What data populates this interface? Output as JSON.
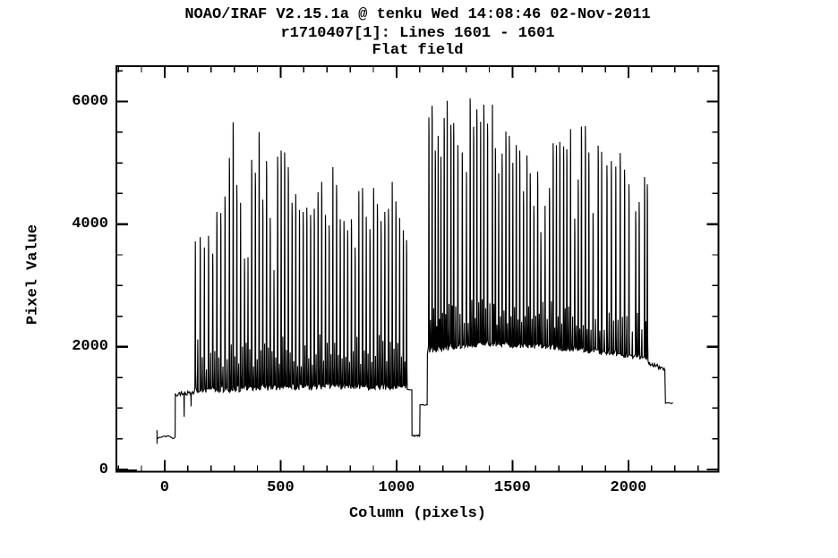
{
  "window": {
    "background": "#ffffff",
    "foreground": "#000000"
  },
  "header": {
    "line1": "NOAO/IRAF V2.15.1a @ tenku Wed 14:08:46 02-Nov-2011",
    "line2": "r1710407[1]: Lines 1601 - 1601",
    "line3": "Flat field"
  },
  "chart_data": {
    "type": "line",
    "title": "NOAO/IRAF V2.15.1a @ tenku Wed 14:08:46 02-Nov-2011",
    "subtitle": "r1710407[1]: Lines 1601 - 1601",
    "plot_label": "Flat field",
    "xlabel": "Column (pixels)",
    "ylabel": "Pixel Value",
    "xlim": [
      -212,
      2392
    ],
    "ylim": [
      -51,
      6591
    ],
    "grid": false,
    "legend": "none",
    "line_color": "#000000",
    "background": "#ffffff",
    "xticks": {
      "major": [
        0,
        500,
        1000,
        1500,
        2000
      ],
      "minor_step": 100,
      "minor_range": [
        -200,
        2300
      ]
    },
    "yticks": {
      "major": [
        0,
        2000,
        4000,
        6000
      ],
      "minor_step": 500,
      "minor_range": [
        500,
        6500
      ]
    },
    "series_model": {
      "description": "Echelle flat-field cut along one CCD line: low lead-in, first order-comb block on ~1250 ADU baseline, inter-chip gap dropping to ~550, second brighter comb on ~1900 ADU baseline, tail step down to ~1080.",
      "lead_bar": {
        "col_range": [
          -207,
          -120
        ],
        "value": -25
      },
      "start_plateau": {
        "col_range": [
          -33,
          45
        ],
        "value": 530
      },
      "baseline1": {
        "start_value": 1240,
        "end_value": 1300,
        "noise": 90,
        "dips": [
          [
            84,
            860
          ],
          [
            114,
            1030
          ]
        ]
      },
      "interpeak_bump1": {
        "min_above_base": 380,
        "max_above_base": 900
      },
      "spikes1": [
        [
          133,
          3720
        ],
        [
          154,
          3790
        ],
        [
          172,
          3620
        ],
        [
          190,
          3810
        ],
        [
          208,
          3520
        ],
        [
          226,
          4200
        ],
        [
          243,
          4180
        ],
        [
          261,
          4450
        ],
        [
          280,
          5080
        ],
        [
          296,
          5660
        ],
        [
          312,
          4640
        ],
        [
          328,
          4350
        ],
        [
          345,
          3440
        ],
        [
          360,
          3460
        ],
        [
          376,
          5050
        ],
        [
          392,
          4840
        ],
        [
          408,
          5500
        ],
        [
          424,
          4400
        ],
        [
          440,
          5030
        ],
        [
          456,
          4100
        ],
        [
          472,
          3250
        ],
        [
          488,
          5100
        ],
        [
          503,
          5200
        ],
        [
          518,
          5170
        ],
        [
          534,
          4930
        ],
        [
          550,
          4350
        ],
        [
          566,
          4490
        ],
        [
          582,
          4230
        ],
        [
          598,
          4200
        ],
        [
          614,
          4270
        ],
        [
          630,
          4150
        ],
        [
          646,
          4250
        ],
        [
          662,
          4520
        ],
        [
          678,
          4690
        ],
        [
          694,
          4150
        ],
        [
          710,
          3980
        ],
        [
          726,
          4930
        ],
        [
          742,
          4640
        ],
        [
          758,
          4080
        ],
        [
          774,
          4050
        ],
        [
          790,
          3900
        ],
        [
          806,
          4080
        ],
        [
          822,
          3620
        ],
        [
          838,
          4540
        ],
        [
          854,
          4590
        ],
        [
          870,
          4120
        ],
        [
          886,
          3920
        ],
        [
          902,
          4590
        ],
        [
          918,
          4330
        ],
        [
          934,
          4050
        ],
        [
          950,
          4200
        ],
        [
          966,
          4250
        ],
        [
          982,
          4690
        ],
        [
          998,
          4370
        ],
        [
          1014,
          4100
        ],
        [
          1030,
          3900
        ],
        [
          1044,
          3740
        ]
      ],
      "gap": {
        "drop_col": 1066,
        "low_value": 550,
        "low_end_col": 1100,
        "mid_value": 1055,
        "mid_end_col": 1132,
        "rise_value": 1890
      },
      "baseline2": [
        [
          1133,
          1890
        ],
        [
          1350,
          1995
        ],
        [
          1650,
          1960
        ],
        [
          1950,
          1845
        ],
        [
          2086,
          1745
        ]
      ],
      "baseline2_noise": 80,
      "interpeak_bump2": {
        "min_above_base": 350,
        "max_above_base": 800
      },
      "spikes2": [
        [
          1140,
          5740
        ],
        [
          1154,
          5930
        ],
        [
          1168,
          5200
        ],
        [
          1180,
          5440
        ],
        [
          1192,
          5100
        ],
        [
          1206,
          5730
        ],
        [
          1219,
          6010
        ],
        [
          1235,
          5620
        ],
        [
          1247,
          5650
        ],
        [
          1265,
          5290
        ],
        [
          1284,
          5170
        ],
        [
          1302,
          4850
        ],
        [
          1318,
          6050
        ],
        [
          1333,
          5590
        ],
        [
          1347,
          5870
        ],
        [
          1363,
          5670
        ],
        [
          1377,
          5950
        ],
        [
          1393,
          5640
        ],
        [
          1414,
          5950
        ],
        [
          1427,
          5240
        ],
        [
          1441,
          4830
        ],
        [
          1456,
          5150
        ],
        [
          1472,
          5510
        ],
        [
          1487,
          5440
        ],
        [
          1502,
          5000
        ],
        [
          1517,
          5290
        ],
        [
          1532,
          5200
        ],
        [
          1548,
          4540
        ],
        [
          1563,
          5120
        ],
        [
          1577,
          4830
        ],
        [
          1593,
          4300
        ],
        [
          1609,
          4860
        ],
        [
          1623,
          3870
        ],
        [
          1641,
          4300
        ],
        [
          1660,
          4590
        ],
        [
          1676,
          5320
        ],
        [
          1690,
          5290
        ],
        [
          1705,
          5340
        ],
        [
          1721,
          5270
        ],
        [
          1735,
          5220
        ],
        [
          1751,
          5550
        ],
        [
          1769,
          4090
        ],
        [
          1784,
          4730
        ],
        [
          1798,
          5590
        ],
        [
          1815,
          5600
        ],
        [
          1830,
          5170
        ],
        [
          1848,
          4180
        ],
        [
          1870,
          5280
        ],
        [
          1885,
          5180
        ],
        [
          1908,
          4960
        ],
        [
          1927,
          5030
        ],
        [
          1946,
          4940
        ],
        [
          1965,
          5160
        ],
        [
          1984,
          4890
        ],
        [
          2003,
          4650
        ],
        [
          2032,
          4210
        ],
        [
          2047,
          4360
        ],
        [
          2070,
          4770
        ],
        [
          2082,
          4650
        ]
      ],
      "tail": {
        "plateau_start": [
          2088,
          1730
        ],
        "plateau_end": [
          2158,
          1635
        ],
        "drop_value": 1080,
        "end_col": 2191
      }
    }
  }
}
